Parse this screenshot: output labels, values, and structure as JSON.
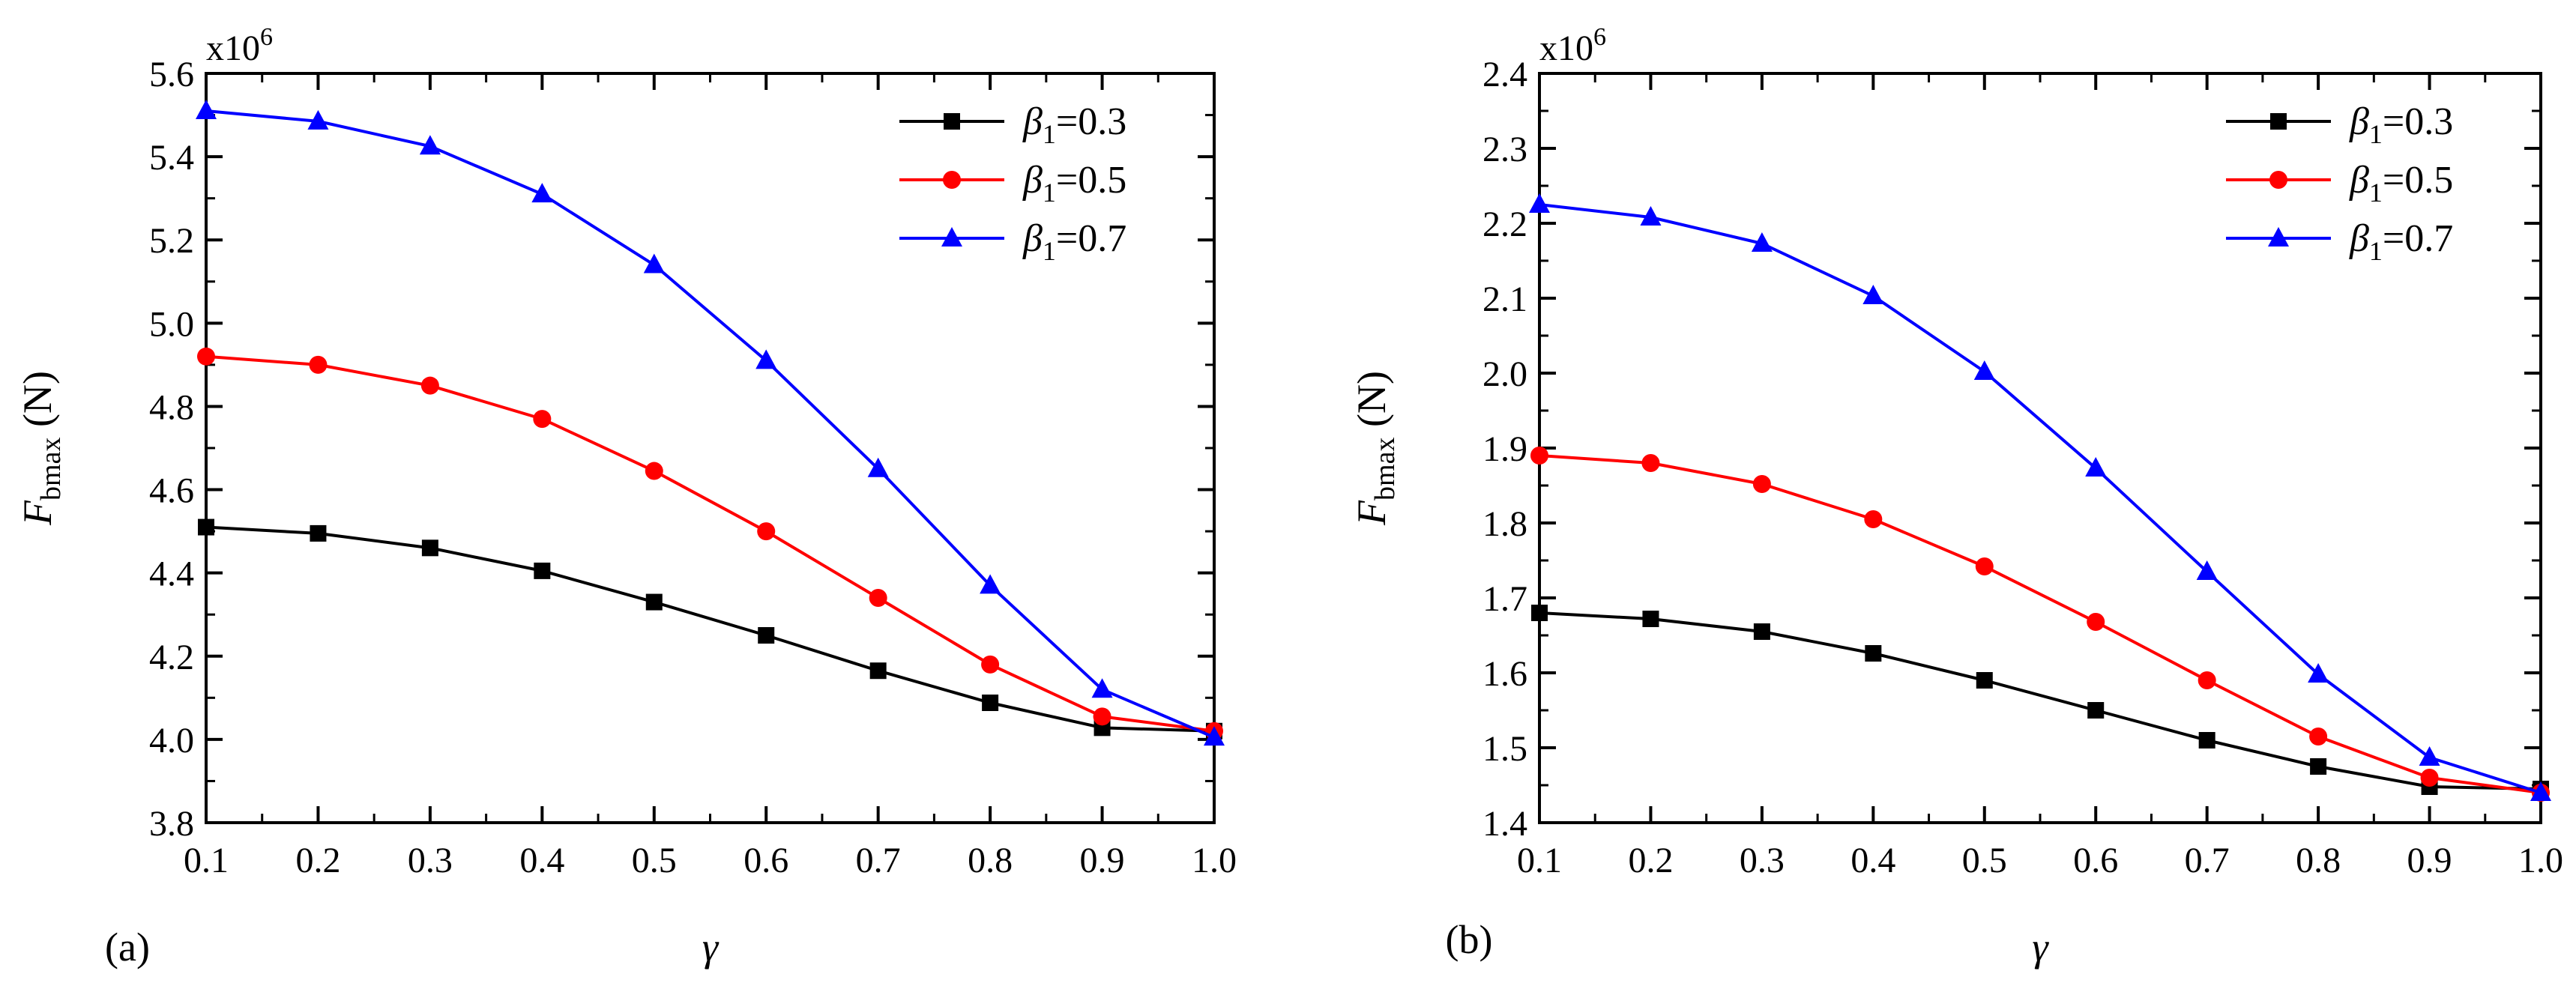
{
  "chart_data": [
    {
      "type": "line",
      "panel_label": "(a)",
      "title": "",
      "xlabel": "γ",
      "ylabel": {
        "main": "F",
        "sub": "bmax",
        "unit": " (N)"
      },
      "y_multiplier": {
        "base": "x10",
        "exp": "6"
      },
      "xlim": [
        0.1,
        1.0
      ],
      "ylim": [
        3.8,
        5.6
      ],
      "x_ticks": [
        "0.1",
        "0.2",
        "0.3",
        "0.4",
        "0.5",
        "0.6",
        "0.7",
        "0.8",
        "0.9",
        "1.0"
      ],
      "y_ticks": [
        "3.8",
        "4.0",
        "4.2",
        "4.4",
        "4.6",
        "4.8",
        "5.0",
        "5.2",
        "5.4",
        "5.6"
      ],
      "legend_position": "top-right",
      "x": [
        0.1,
        0.2,
        0.3,
        0.4,
        0.5,
        0.6,
        0.7,
        0.8,
        0.9,
        1.0
      ],
      "series": [
        {
          "symbol": "β",
          "sub": "1",
          "value_text": "=0.3",
          "marker": "square",
          "color": "#000000",
          "values": [
            4.51,
            4.495,
            4.46,
            4.405,
            4.33,
            4.25,
            4.165,
            4.088,
            4.028,
            4.02
          ]
        },
        {
          "symbol": "β",
          "sub": "1",
          "value_text": "=0.5",
          "marker": "circle",
          "color": "#ff0000",
          "values": [
            4.92,
            4.9,
            4.85,
            4.77,
            4.645,
            4.5,
            4.34,
            4.18,
            4.055,
            4.02
          ]
        },
        {
          "symbol": "β",
          "sub": "1",
          "value_text": "=0.7",
          "marker": "triangle",
          "color": "#0000ff",
          "values": [
            5.51,
            5.485,
            5.425,
            5.31,
            5.14,
            4.91,
            4.65,
            4.37,
            4.12,
            4.005
          ]
        }
      ]
    },
    {
      "type": "line",
      "panel_label": "(b)",
      "title": "",
      "xlabel": "γ",
      "ylabel": {
        "main": "F",
        "sub": "bmax",
        "unit": " (N)"
      },
      "y_multiplier": {
        "base": "x10",
        "exp": "6"
      },
      "xlim": [
        0.1,
        1.0
      ],
      "ylim": [
        1.4,
        2.4
      ],
      "x_ticks": [
        "0.1",
        "0.2",
        "0.3",
        "0.4",
        "0.5",
        "0.6",
        "0.7",
        "0.8",
        "0.9",
        "1.0"
      ],
      "y_ticks": [
        "1.4",
        "1.5",
        "1.6",
        "1.7",
        "1.8",
        "1.9",
        "2.0",
        "2.1",
        "2.2",
        "2.3",
        "2.4"
      ],
      "legend_position": "top-right",
      "x": [
        0.1,
        0.2,
        0.3,
        0.4,
        0.5,
        0.6,
        0.7,
        0.8,
        0.9,
        1.0
      ],
      "series": [
        {
          "symbol": "β",
          "sub": "1",
          "value_text": "=0.3",
          "marker": "square",
          "color": "#000000",
          "values": [
            1.68,
            1.672,
            1.655,
            1.626,
            1.59,
            1.55,
            1.51,
            1.475,
            1.448,
            1.445
          ]
        },
        {
          "symbol": "β",
          "sub": "1",
          "value_text": "=0.5",
          "marker": "circle",
          "color": "#ff0000",
          "values": [
            1.89,
            1.88,
            1.852,
            1.805,
            1.742,
            1.668,
            1.59,
            1.515,
            1.46,
            1.44
          ]
        },
        {
          "symbol": "β",
          "sub": "1",
          "value_text": "=0.7",
          "marker": "triangle",
          "color": "#0000ff",
          "values": [
            2.225,
            2.208,
            2.173,
            2.103,
            2.002,
            1.873,
            1.735,
            1.598,
            1.487,
            1.44
          ]
        }
      ]
    }
  ]
}
